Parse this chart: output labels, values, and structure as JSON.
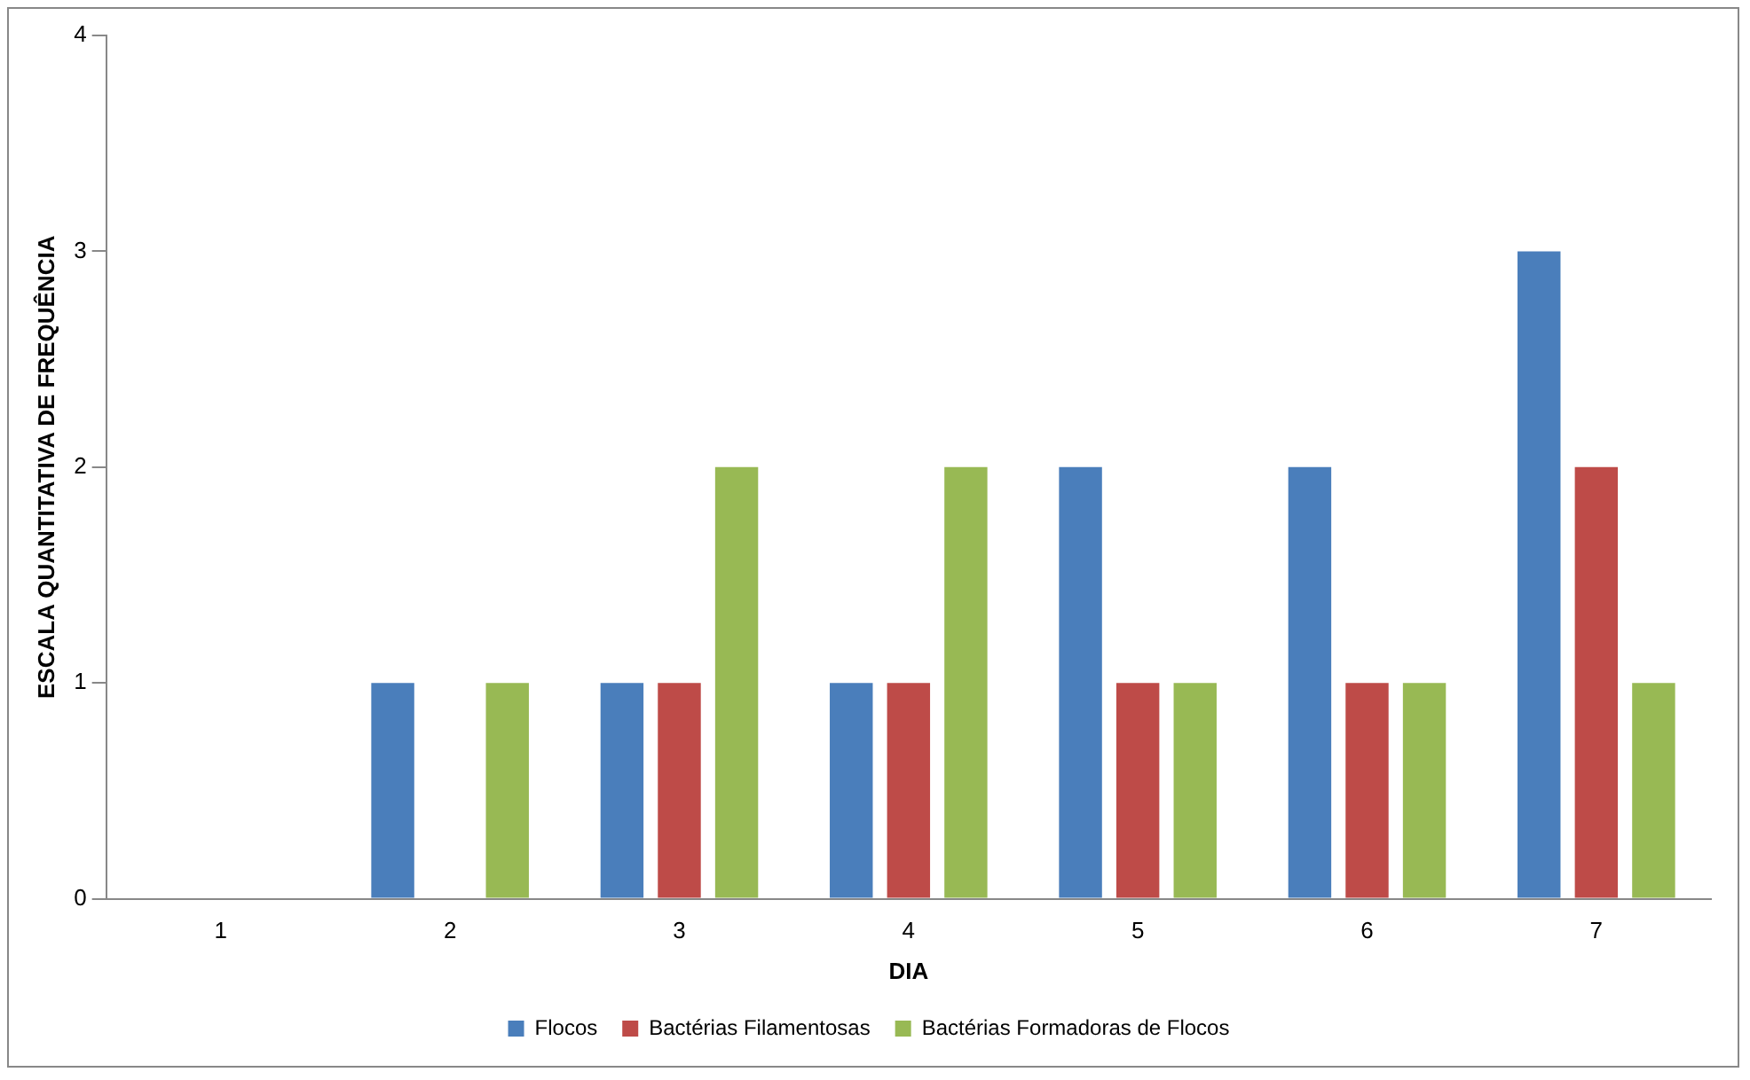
{
  "chart_data": {
    "type": "bar",
    "xlabel": "DIA",
    "ylabel": "ESCALA QUANTITATIVA DE FREQUÊNCIA",
    "categories": [
      "1",
      "2",
      "3",
      "4",
      "5",
      "6",
      "7"
    ],
    "series": [
      {
        "name": "Flocos",
        "color": "#4a7ebb",
        "values": [
          0,
          1,
          1,
          1,
          2,
          2,
          3
        ]
      },
      {
        "name": "Bactérias Filamentosas",
        "color": "#be4b48",
        "values": [
          0,
          0,
          1,
          1,
          1,
          1,
          2
        ]
      },
      {
        "name": "Bactérias Formadoras de Flocos",
        "color": "#98b954",
        "values": [
          0,
          1,
          2,
          2,
          1,
          1,
          1
        ]
      }
    ],
    "ylim": [
      0,
      4
    ],
    "yticks": [
      0,
      1,
      2,
      3,
      4
    ],
    "grid": false,
    "legend": "bottom"
  }
}
